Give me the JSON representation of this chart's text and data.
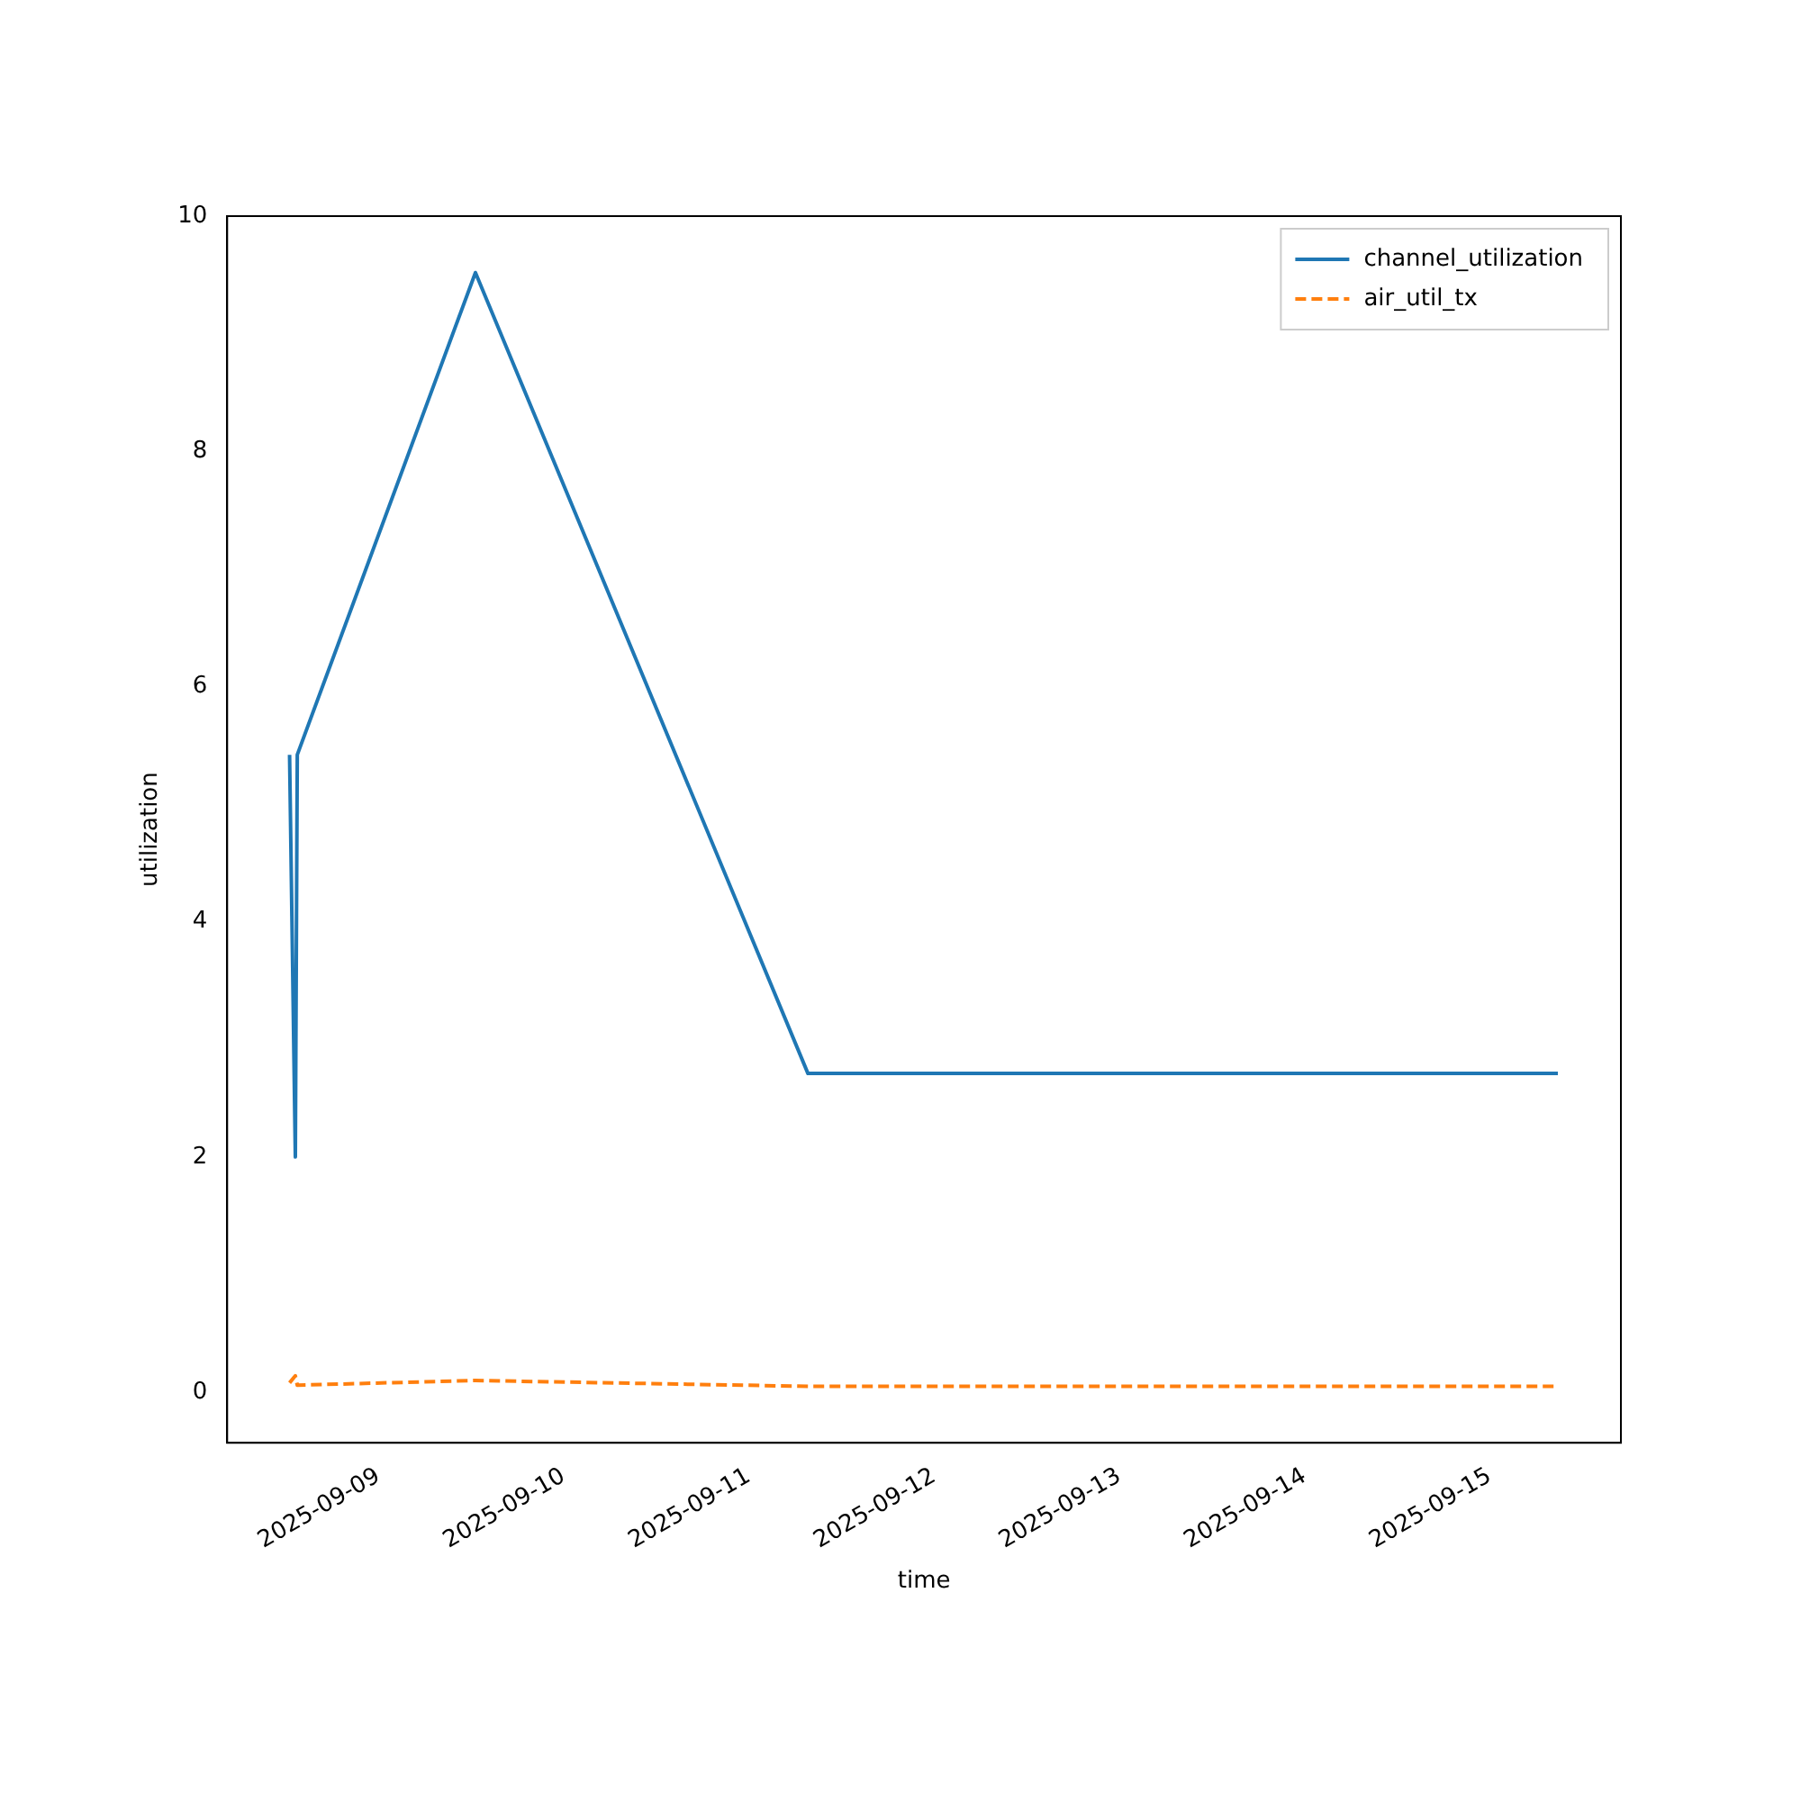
{
  "chart_data": {
    "type": "line",
    "xlabel": "time",
    "ylabel": "utilization",
    "x": [
      "2025-09-08T12:30",
      "2025-09-08T13:15",
      "2025-09-08T13:30",
      "2025-09-09T12:35",
      "2025-09-11T07:40",
      "2025-09-15T08:50"
    ],
    "series": [
      {
        "name": "channel_utilization",
        "color": "#1f77b4",
        "line_style": "solid",
        "values": [
          5.42,
          2.0,
          5.42,
          9.52,
          2.71,
          2.71
        ]
      },
      {
        "name": "air_util_tx",
        "color": "#ff7f0e",
        "line_style": "dashed",
        "values": [
          0.08,
          0.14,
          0.06,
          0.1,
          0.05,
          0.05
        ]
      }
    ],
    "xlim": [
      "2025-09-08T04:25",
      "2025-09-15T17:00"
    ],
    "xticks": [
      "2025-09-09",
      "2025-09-10",
      "2025-09-11",
      "2025-09-12",
      "2025-09-13",
      "2025-09-14",
      "2025-09-15"
    ],
    "ylim": [
      -0.43,
      10
    ],
    "yticks": [
      0,
      2,
      4,
      6,
      8,
      10
    ],
    "grid": false,
    "legend": "top right",
    "marker": "none"
  }
}
